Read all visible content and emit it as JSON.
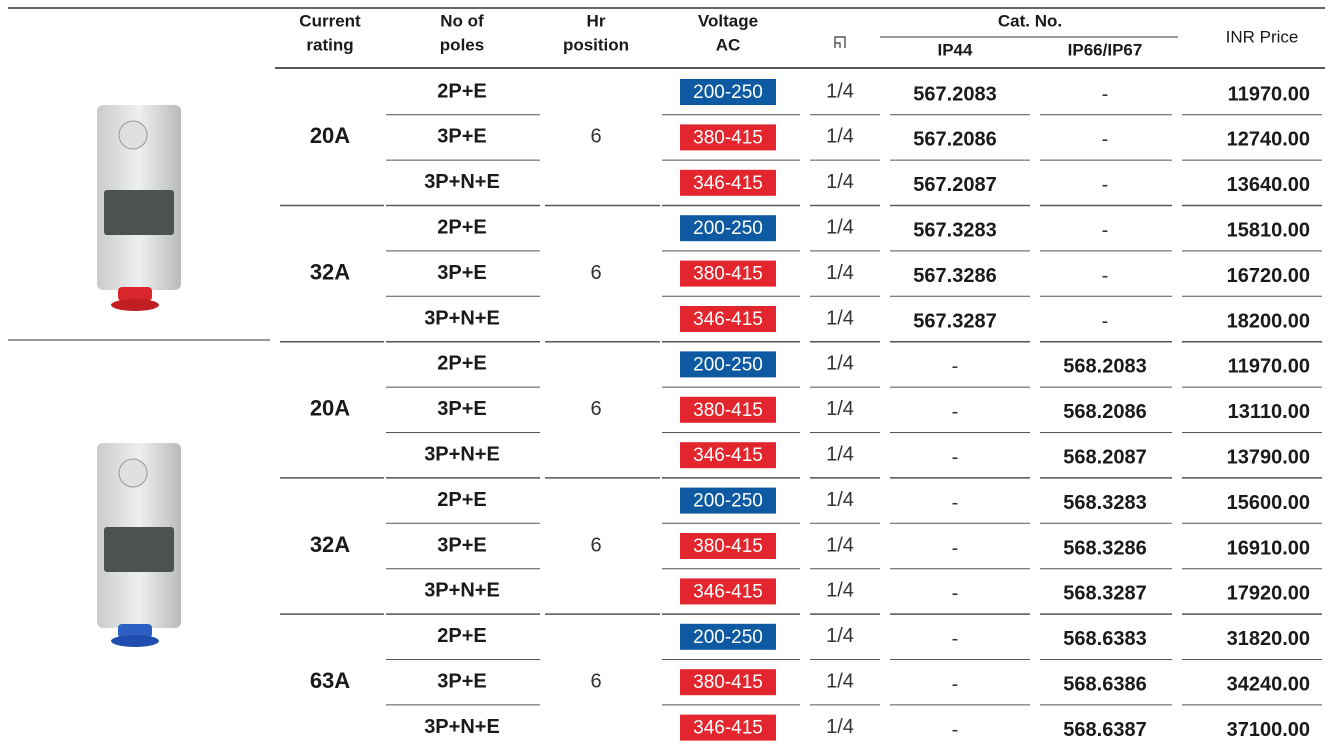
{
  "header": {
    "current_rating": [
      "Current",
      "rating"
    ],
    "poles": [
      "No of",
      "poles"
    ],
    "hr_position": [
      "Hr",
      "position"
    ],
    "voltage": [
      "Voltage",
      "AC"
    ],
    "cat_no": "Cat. No.",
    "ip44": "IP44",
    "ip66": "IP66/IP67",
    "price": "INR Price"
  },
  "voltage_colors": {
    "200-250": "#0d5aa3",
    "380-415": "#e3262d",
    "346-415": "#e3262d"
  },
  "products": [
    {
      "groups": [
        {
          "rating": "20A",
          "hr": "6",
          "rows": [
            {
              "poles": "2P+E",
              "voltage": "200-250",
              "duty": "1/4",
              "ip44": "567.2083",
              "ip66": "-",
              "price": "11970.00"
            },
            {
              "poles": "3P+E",
              "voltage": "380-415",
              "duty": "1/4",
              "ip44": "567.2086",
              "ip66": "-",
              "price": "12740.00"
            },
            {
              "poles": "3P+N+E",
              "voltage": "346-415",
              "duty": "1/4",
              "ip44": "567.2087",
              "ip66": "-",
              "price": "13640.00"
            }
          ]
        },
        {
          "rating": "32A",
          "hr": "6",
          "rows": [
            {
              "poles": "2P+E",
              "voltage": "200-250",
              "duty": "1/4",
              "ip44": "567.3283",
              "ip66": "-",
              "price": "15810.00"
            },
            {
              "poles": "3P+E",
              "voltage": "380-415",
              "duty": "1/4",
              "ip44": "567.3286",
              "ip66": "-",
              "price": "16720.00"
            },
            {
              "poles": "3P+N+E",
              "voltage": "346-415",
              "duty": "1/4",
              "ip44": "567.3287",
              "ip66": "-",
              "price": "18200.00"
            }
          ]
        }
      ]
    },
    {
      "groups": [
        {
          "rating": "20A",
          "hr": "6",
          "rows": [
            {
              "poles": "2P+E",
              "voltage": "200-250",
              "duty": "1/4",
              "ip44": "-",
              "ip66": "568.2083",
              "price": "11970.00"
            },
            {
              "poles": "3P+E",
              "voltage": "380-415",
              "duty": "1/4",
              "ip44": "-",
              "ip66": "568.2086",
              "price": "13110.00"
            },
            {
              "poles": "3P+N+E",
              "voltage": "346-415",
              "duty": "1/4",
              "ip44": "-",
              "ip66": "568.2087",
              "price": "13790.00"
            }
          ]
        },
        {
          "rating": "32A",
          "hr": "6",
          "rows": [
            {
              "poles": "2P+E",
              "voltage": "200-250",
              "duty": "1/4",
              "ip44": "-",
              "ip66": "568.3283",
              "price": "15600.00"
            },
            {
              "poles": "3P+E",
              "voltage": "380-415",
              "duty": "1/4",
              "ip44": "-",
              "ip66": "568.3286",
              "price": "16910.00"
            },
            {
              "poles": "3P+N+E",
              "voltage": "346-415",
              "duty": "1/4",
              "ip44": "-",
              "ip66": "568.3287",
              "price": "17920.00"
            }
          ]
        },
        {
          "rating": "63A",
          "hr": "6",
          "rows": [
            {
              "poles": "2P+E",
              "voltage": "200-250",
              "duty": "1/4",
              "ip44": "-",
              "ip66": "568.6383",
              "price": "31820.00"
            },
            {
              "poles": "3P+E",
              "voltage": "380-415",
              "duty": "1/4",
              "ip44": "-",
              "ip66": "568.6386",
              "price": "34240.00"
            },
            {
              "poles": "3P+N+E",
              "voltage": "346-415",
              "duty": "1/4",
              "ip44": "-",
              "ip66": "568.6387",
              "price": "37100.00"
            }
          ]
        }
      ]
    }
  ]
}
